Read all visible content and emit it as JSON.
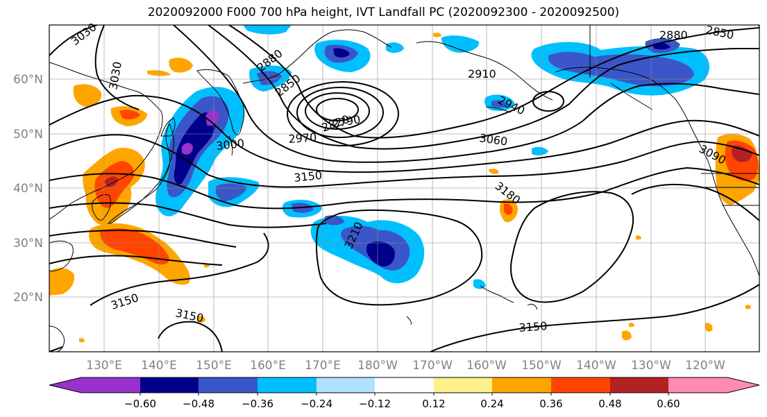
{
  "title": "2020092000 F000 700 hPa height, IVT Landfall PC (2020092300 - 2020092500)",
  "map": {
    "lon_labels": [
      "130°E",
      "140°E",
      "150°E",
      "160°E",
      "170°E",
      "180°W",
      "170°W",
      "160°W",
      "150°W",
      "140°W",
      "130°W",
      "120°W"
    ],
    "lat_labels": [
      "20°N",
      "30°N",
      "40°N",
      "50°N",
      "60°N"
    ],
    "contour_labels": [
      "3030",
      "3030",
      "2880",
      "2850",
      "2910",
      "2940",
      "2880",
      "2850",
      "2820",
      "2790",
      "3000",
      "2970",
      "3060",
      "3090",
      "3150",
      "3180",
      "3210",
      "3150",
      "3150",
      "3150"
    ],
    "colors": {
      "contour": "#000000",
      "coast": "#000000",
      "grid": "#8c8c8c",
      "axis_label": "#808080"
    }
  },
  "colorbar": {
    "tick_labels": [
      "−0.60",
      "−0.48",
      "−0.36",
      "−0.24",
      "−0.12",
      "0.12",
      "0.24",
      "0.36",
      "0.48",
      "0.60"
    ],
    "colors": [
      "#9932cc",
      "#00008b",
      "#3a56c8",
      "#00bfff",
      "#b0e2ff",
      "#ffffff",
      "#fff08a",
      "#ffa500",
      "#ff4500",
      "#b22222",
      "#ff8cb0"
    ]
  }
}
